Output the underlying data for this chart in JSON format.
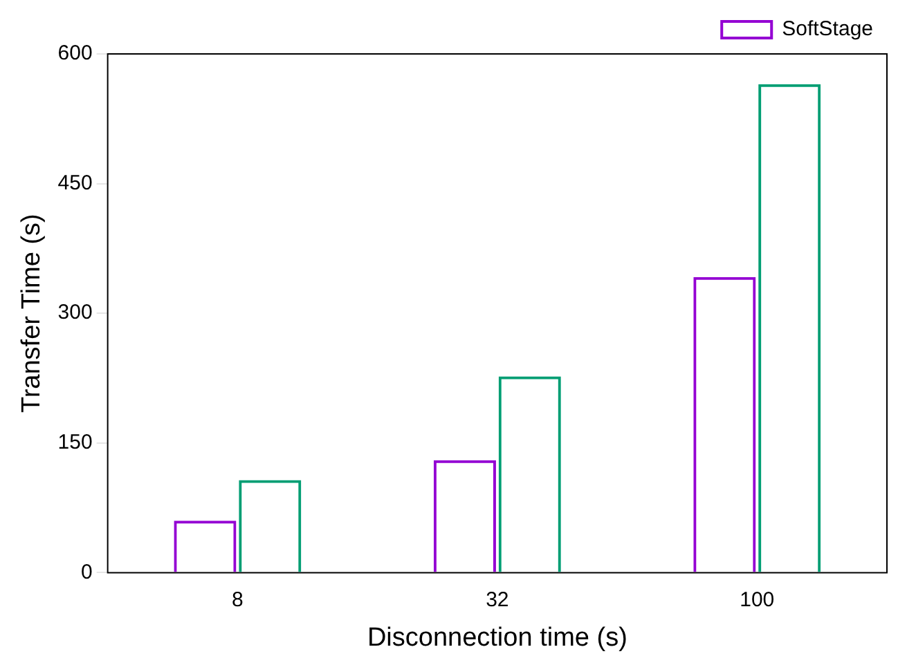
{
  "chart_data": {
    "type": "bar",
    "xlabel": "Disconnection time (s)",
    "ylabel": "Transfer Time (s)",
    "categories": [
      "8",
      "32",
      "100"
    ],
    "series": [
      {
        "name": "SoftStage",
        "color": "#9400d3",
        "values": [
          60,
          130,
          342
        ]
      },
      {
        "color": "#009e73",
        "values": [
          107,
          227,
          565
        ]
      }
    ],
    "ylim": [
      0,
      600
    ],
    "yticks": [
      0,
      150,
      300,
      450,
      600
    ],
    "legend": "top right"
  }
}
